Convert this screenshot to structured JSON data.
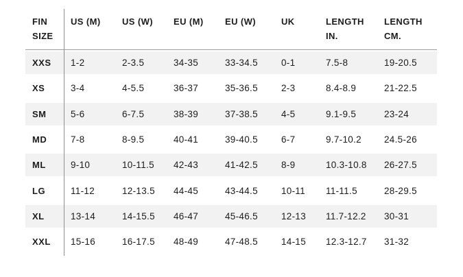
{
  "table": {
    "columns": [
      {
        "label": "FIN\nSIZE"
      },
      {
        "label": "US (M)"
      },
      {
        "label": "US (W)"
      },
      {
        "label": "EU (M)"
      },
      {
        "label": "EU (W)"
      },
      {
        "label": "UK"
      },
      {
        "label": "LENGTH\nIN."
      },
      {
        "label": "LENGTH\nCM."
      }
    ],
    "rows": [
      {
        "size": "XXS",
        "values": [
          "1-2",
          "2-3.5",
          "34-35",
          "33-34.5",
          "0-1",
          "7.5-8",
          "19-20.5"
        ]
      },
      {
        "size": "XS",
        "values": [
          "3-4",
          "4-5.5",
          "36-37",
          "35-36.5",
          "2-3",
          "8.4-8.9",
          "21-22.5"
        ]
      },
      {
        "size": "SM",
        "values": [
          "5-6",
          "6-7.5",
          "38-39",
          "37-38.5",
          "4-5",
          "9.1-9.5",
          "23-24"
        ]
      },
      {
        "size": "MD",
        "values": [
          "7-8",
          "8-9.5",
          "40-41",
          "39-40.5",
          "6-7",
          "9.7-10.2",
          "24.5-26"
        ]
      },
      {
        "size": "ML",
        "values": [
          "9-10",
          "10-11.5",
          "42-43",
          "41-42.5",
          "8-9",
          "10.3-10.8",
          "26-27.5"
        ]
      },
      {
        "size": "LG",
        "values": [
          "11-12",
          "12-13.5",
          "44-45",
          "43-44.5",
          "10-11",
          "11-11.5",
          "28-29.5"
        ]
      },
      {
        "size": "XL",
        "values": [
          "13-14",
          "14-15.5",
          "46-47",
          "45-46.5",
          "12-13",
          "11.7-12.2",
          "30-31"
        ]
      },
      {
        "size": "XXL",
        "values": [
          "15-16",
          "16-17.5",
          "48-49",
          "47-48.5",
          "14-15",
          "12.3-12.7",
          "31-32"
        ]
      }
    ],
    "colors": {
      "stripe": "#f2f2f2",
      "divider": "#8e8e8e",
      "header_rule": "#9a9a9a",
      "text": "#1c1c1c",
      "bg": "#ffffff"
    }
  }
}
